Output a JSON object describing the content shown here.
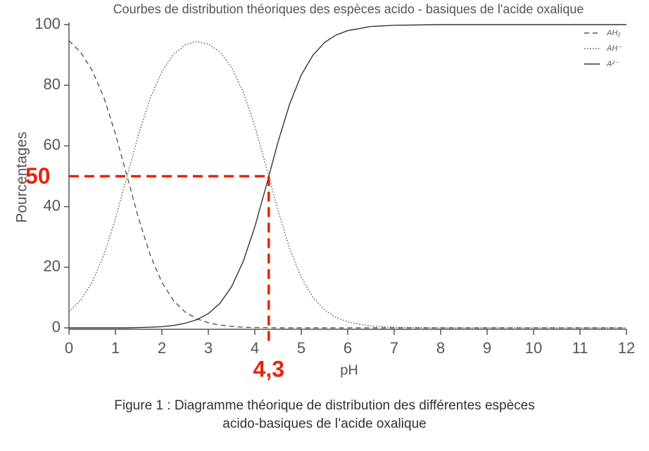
{
  "chart_data": {
    "type": "line",
    "title": "Courbes de distribution théoriques des espèces acido - basiques de l'acide oxalique",
    "xlabel": "pH",
    "ylabel": "Pourcentages",
    "x": [
      0,
      0.25,
      0.5,
      0.75,
      1,
      1.25,
      1.5,
      1.75,
      2,
      2.25,
      2.5,
      2.75,
      3,
      3.25,
      3.5,
      3.75,
      4,
      4.25,
      4.5,
      4.75,
      5,
      5.25,
      5.5,
      5.75,
      6,
      6.5,
      7,
      8,
      9,
      10,
      11,
      12
    ],
    "series": [
      {
        "name": "AH₂",
        "color": "#555555",
        "dash": "7,5",
        "values": [
          94.7,
          90.9,
          84.9,
          76.0,
          64.0,
          50.0,
          36.0,
          24.0,
          15.0,
          9.0,
          5.2,
          3.0,
          1.7,
          0.9,
          0.5,
          0.2,
          0.1,
          0.1,
          0,
          0,
          0,
          0,
          0,
          0,
          0,
          0,
          0,
          0,
          0,
          0,
          0,
          0
        ]
      },
      {
        "name": "AH⁻",
        "color": "#555555",
        "dash": "1.5,2.5",
        "values": [
          5.3,
          9.1,
          15.1,
          24.0,
          36.0,
          50.0,
          63.9,
          75.8,
          84.5,
          90.2,
          93.3,
          94.4,
          93.6,
          91.0,
          85.9,
          77.8,
          66.5,
          52.9,
          38.7,
          26.2,
          16.6,
          10.1,
          5.9,
          3.4,
          2.0,
          0.6,
          0.2,
          0,
          0,
          0,
          0,
          0
        ]
      },
      {
        "name": "A²⁻",
        "color": "#333333",
        "dash": "none",
        "values": [
          0,
          0,
          0,
          0,
          0,
          0,
          0.1,
          0.2,
          0.4,
          0.8,
          1.5,
          2.7,
          4.7,
          8.1,
          13.6,
          21.9,
          33.3,
          47.1,
          61.3,
          73.8,
          83.4,
          89.9,
          94.1,
          96.6,
          98.0,
          99.4,
          99.8,
          100,
          100,
          100,
          100,
          100
        ]
      }
    ],
    "xlim": [
      0,
      12
    ],
    "ylim": [
      0,
      100
    ],
    "xticks": [
      0,
      1,
      2,
      3,
      4,
      5,
      6,
      7,
      8,
      9,
      10,
      11,
      12
    ],
    "yticks": [
      0,
      20,
      40,
      60,
      80,
      100
    ],
    "legend": "upper right",
    "annotations": [
      {
        "label": "50",
        "y": 50,
        "color": "#e8230f"
      },
      {
        "label": "4,3",
        "x": 4.3,
        "color": "#e8230f"
      }
    ],
    "caption": [
      "Figure 1 : Diagramme théorique de distribution des différentes espèces",
      "acido-basiques de l’acide oxalique"
    ]
  }
}
